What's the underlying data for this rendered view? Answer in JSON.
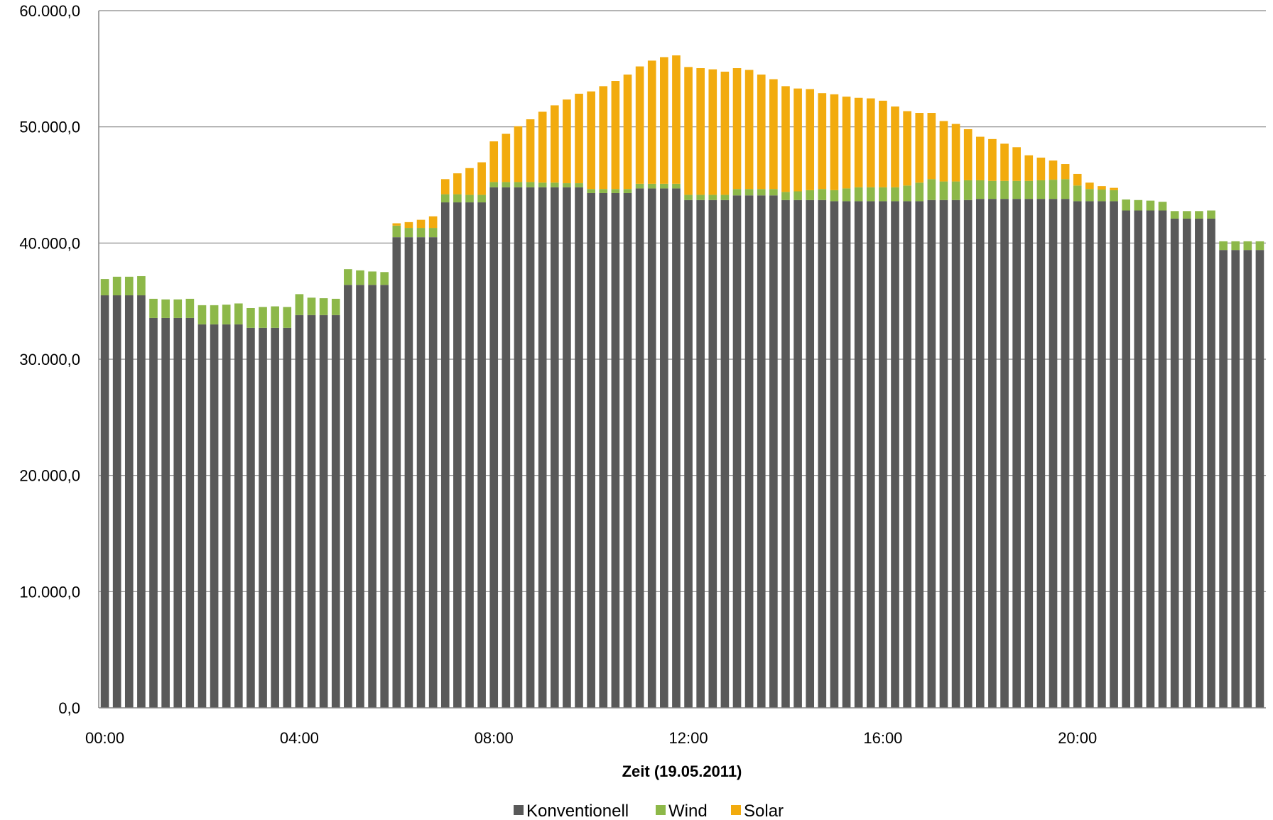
{
  "chart_data": {
    "type": "bar",
    "stacked": true,
    "title": "",
    "xlabel": "Zeit (19.05.2011)",
    "ylabel": "",
    "ylim": [
      0,
      60000
    ],
    "yticks": [
      "0,0",
      "10.000,0",
      "20.000,0",
      "30.000,0",
      "40.000,0",
      "50.000,0",
      "60.000,0"
    ],
    "xticks": [
      "00:00",
      "04:00",
      "08:00",
      "12:00",
      "16:00",
      "20:00"
    ],
    "interval_minutes": 15,
    "grid": true,
    "legend_position": "bottom",
    "series": [
      {
        "name": "Konventionell",
        "color": "#595959",
        "values": [
          35500,
          35500,
          35500,
          35500,
          33550,
          33550,
          33550,
          33550,
          33000,
          33000,
          33000,
          33000,
          32700,
          32700,
          32700,
          32700,
          33800,
          33800,
          33800,
          33800,
          36400,
          36400,
          36400,
          36400,
          40500,
          40500,
          40500,
          40500,
          43500,
          43500,
          43500,
          43500,
          44800,
          44800,
          44800,
          44800,
          44800,
          44800,
          44800,
          44800,
          44300,
          44300,
          44300,
          44300,
          44700,
          44700,
          44700,
          44700,
          43700,
          43700,
          43700,
          43700,
          44100,
          44100,
          44100,
          44100,
          43700,
          43700,
          43700,
          43700,
          43600,
          43600,
          43600,
          43600,
          43600,
          43600,
          43600,
          43600,
          43700,
          43700,
          43700,
          43700,
          43800,
          43800,
          43800,
          43800,
          43800,
          43800,
          43800,
          43800,
          43600,
          43600,
          43600,
          43600,
          42800,
          42800,
          42800,
          42800,
          42100,
          42100,
          42100,
          42100,
          39400,
          39400,
          39400,
          39400
        ]
      },
      {
        "name": "Wind",
        "color": "#8DB849",
        "values": [
          1400,
          1600,
          1600,
          1650,
          1650,
          1600,
          1600,
          1650,
          1650,
          1650,
          1700,
          1800,
          1700,
          1800,
          1850,
          1800,
          1800,
          1500,
          1450,
          1400,
          1350,
          1250,
          1150,
          1100,
          1000,
          800,
          800,
          800,
          700,
          700,
          650,
          650,
          450,
          450,
          450,
          450,
          400,
          400,
          350,
          350,
          350,
          350,
          350,
          350,
          400,
          400,
          400,
          400,
          450,
          450,
          450,
          450,
          550,
          550,
          550,
          550,
          700,
          750,
          850,
          950,
          950,
          1100,
          1200,
          1200,
          1200,
          1200,
          1350,
          1600,
          1800,
          1600,
          1600,
          1700,
          1600,
          1550,
          1550,
          1550,
          1550,
          1600,
          1650,
          1700,
          1350,
          1050,
          1000,
          950,
          950,
          900,
          850,
          750,
          650,
          650,
          650,
          700,
          750,
          750,
          750,
          750
        ]
      },
      {
        "name": "Solar",
        "color": "#F2AB0E",
        "values": [
          0,
          0,
          0,
          0,
          0,
          0,
          0,
          0,
          0,
          0,
          0,
          0,
          0,
          0,
          0,
          0,
          0,
          0,
          0,
          0,
          0,
          0,
          0,
          0,
          200,
          500,
          700,
          1000,
          1300,
          1800,
          2300,
          2800,
          3500,
          4150,
          4800,
          5400,
          6100,
          6650,
          7200,
          7700,
          8400,
          8850,
          9300,
          9850,
          10100,
          10600,
          10900,
          11050,
          11000,
          10900,
          10800,
          10600,
          10400,
          10250,
          9850,
          9450,
          9100,
          8850,
          8700,
          8250,
          8250,
          7900,
          7700,
          7650,
          7450,
          6950,
          6400,
          6000,
          5700,
          5200,
          4950,
          4400,
          3750,
          3600,
          3200,
          2900,
          2200,
          1950,
          1650,
          1300,
          1000,
          550,
          300,
          200,
          0,
          0,
          0,
          0,
          0,
          0,
          0,
          0,
          0,
          0,
          0,
          0
        ]
      }
    ]
  }
}
